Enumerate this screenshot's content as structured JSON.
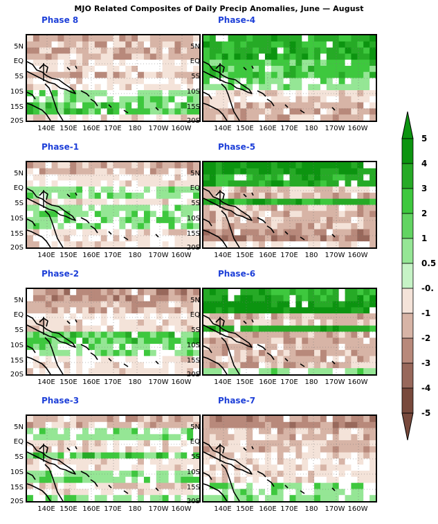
{
  "title": "MJO Related Composites of Daily Precip Anomalies, June — August",
  "y_axis_labels": [
    "5N",
    "EQ",
    "5S",
    "10S",
    "15S",
    "20S"
  ],
  "x_axis_labels": [
    "140E",
    "150E",
    "160E",
    "170E",
    "180",
    "170W",
    "160W"
  ],
  "panels": [
    {
      "phase": "Phase 8",
      "pattern": [
        -2,
        -2,
        -1,
        -2,
        -1,
        1,
        2,
        -1
      ]
    },
    {
      "phase": "Phase-4",
      "pattern": [
        3,
        3,
        2,
        2,
        1,
        -1,
        -2,
        -2
      ]
    },
    {
      "phase": "Phase-1",
      "pattern": [
        -2,
        -1,
        1,
        -1,
        1,
        1,
        -1,
        -1
      ]
    },
    {
      "phase": "Phase-5",
      "pattern": [
        4,
        3,
        -2,
        3,
        -2,
        -2,
        -3,
        -1
      ]
    },
    {
      "phase": "Phase-2",
      "pattern": [
        -3,
        -2,
        -1,
        -1,
        2,
        1,
        -1,
        -1
      ]
    },
    {
      "phase": "Phase-6",
      "pattern": [
        3,
        4,
        -2,
        3,
        -2,
        -2,
        -2,
        1
      ]
    },
    {
      "phase": "Phase-3",
      "pattern": [
        -2,
        1,
        -1,
        2,
        -1,
        1,
        -1,
        1
      ]
    },
    {
      "phase": "Phase-7",
      "pattern": [
        -3,
        -2,
        -2,
        -1,
        -1,
        -1,
        1,
        1
      ]
    }
  ],
  "colorbar": {
    "labels": [
      "5",
      "4",
      "3",
      "2",
      "1",
      "0.5",
      "-0.",
      "-1",
      "-2",
      "-3",
      "-4",
      "-5"
    ],
    "colors": [
      "#0c9410",
      "#26aa26",
      "#3ec83e",
      "#62d462",
      "#95e695",
      "#c6f3c6",
      "#ffffff",
      "#f4e3d9",
      "#d7b4a6",
      "#b8897b",
      "#98685b",
      "#78493c"
    ]
  }
}
